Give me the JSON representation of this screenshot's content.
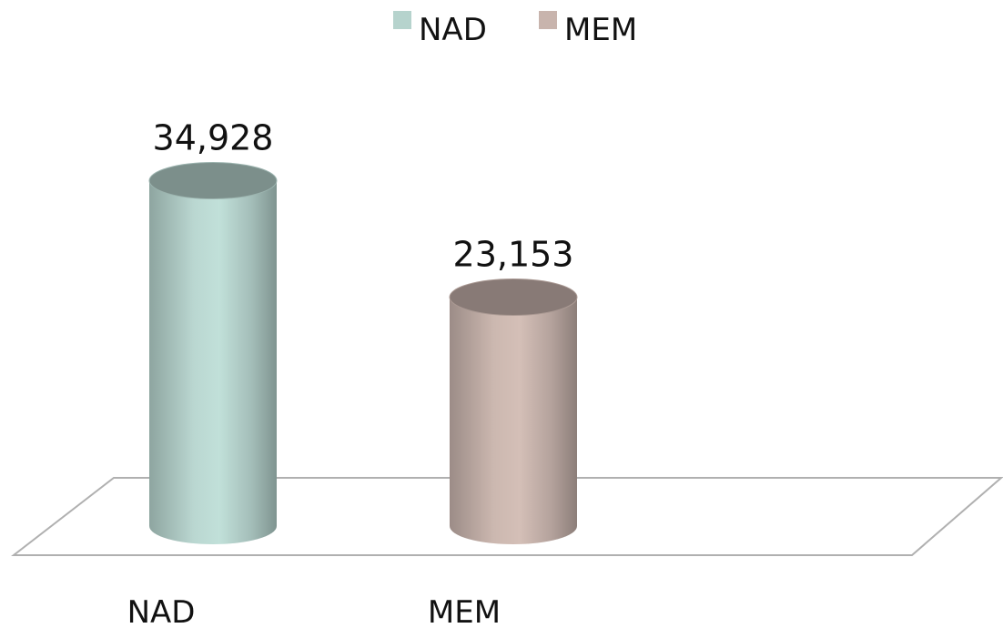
{
  "chart_data": {
    "type": "bar",
    "style": "3d-cylinder",
    "categories": [
      "NAD",
      "MEM"
    ],
    "values": [
      34928,
      23153
    ],
    "data_labels": [
      "34,928",
      "23,153"
    ],
    "title": "",
    "xlabel": "",
    "ylabel": "",
    "ylim": [
      0,
      40000
    ],
    "grid": false,
    "legend": {
      "placement": "top-center",
      "entries": [
        {
          "label": "NAD",
          "color": "#b6d3cd"
        },
        {
          "label": "MEM",
          "color": "#c8b4ad"
        }
      ]
    },
    "colors": {
      "NAD": "#b6d3cd",
      "MEM": "#c8b4ad",
      "floor_stroke": "#b0b0b0"
    }
  }
}
